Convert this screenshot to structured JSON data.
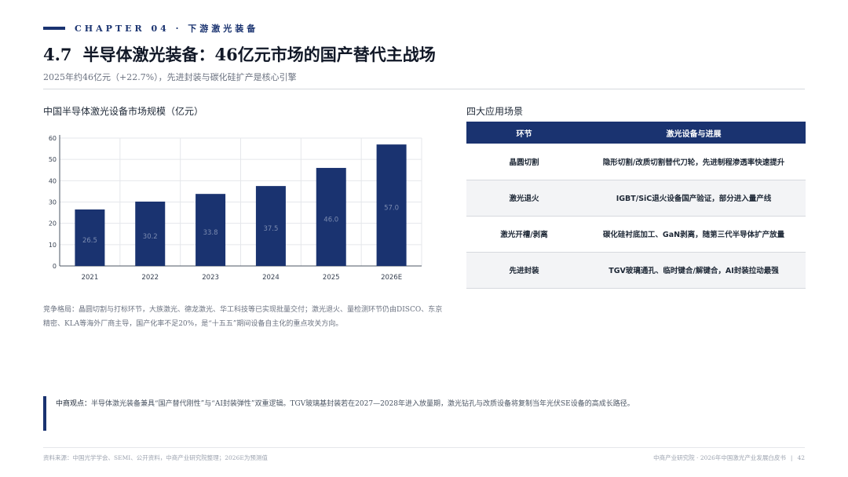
{
  "header": {
    "chapter": "CHAPTER 04 · 下游激光装备",
    "section_number": "4.7",
    "title": "半导体激光装备：46亿元市场的国产替代主战场",
    "subtitle": "2025年约46亿元（+22.7%），先进封装与碳化硅扩产是核心引擎"
  },
  "chart_title": "中国半导体激光设备市场规模（亿元）",
  "chart_data": {
    "type": "bar",
    "categories": [
      "2021",
      "2022",
      "2023",
      "2024",
      "2025",
      "2026E"
    ],
    "values": [
      26.5,
      30.2,
      33.8,
      37.5,
      46.0,
      57.0
    ],
    "value_labels": [
      "26.5",
      "30.2",
      "33.8",
      "37.5",
      "46.0",
      "57.0"
    ],
    "ylim": [
      0,
      60
    ],
    "yticks": [
      "0",
      "10",
      "20",
      "30",
      "40",
      "50",
      "60"
    ],
    "grid": true,
    "bar_color": "#1a3370",
    "label_color": "#7b8bb0"
  },
  "competition_note": "竞争格局：晶圆切割与打标环节，大族激光、德龙激光、华工科技等已实现批量交付；激光退火、量检测环节仍由DISCO、东京精密、KLA等海外厂商主导，国产化率不足20%，是“十五五”期间设备自主化的重点攻关方向。",
  "table": {
    "title": "四大应用场景",
    "headers": [
      "环节",
      "激光设备与进展"
    ],
    "rows": [
      [
        "晶圆切割",
        "隐形切割/改质切割替代刀轮，先进制程渗透率快速提升"
      ],
      [
        "激光退火",
        "IGBT/SiC退火设备国产验证，部分进入量产线"
      ],
      [
        "激光开槽/剥离",
        "碳化硅衬底加工、GaN剥离，随第三代半导体扩产放量"
      ],
      [
        "先进封装",
        "TGV玻璃通孔、临时键合/解键合，AI封装拉动最强"
      ]
    ]
  },
  "viewpoint": {
    "label": "中商观点：",
    "text": "半导体激光装备兼具“国产替代刚性”与“AI封装弹性”双重逻辑。TGV玻璃基封装若在2027—2028年进入放量期，激光钻孔与改质设备将复制当年光伏SE设备的高成长路径。"
  },
  "footer": {
    "source": "资料来源：中国光学学会、SEMI、公开资料，中商产业研究院整理；2026E为预测值",
    "publisher": "中商产业研究院 · 2026年中国激光产业发展白皮书",
    "page": "42"
  },
  "colors": {
    "accent": "#1a3370",
    "grid": "#e5e7eb",
    "muted": "#6b7280"
  }
}
